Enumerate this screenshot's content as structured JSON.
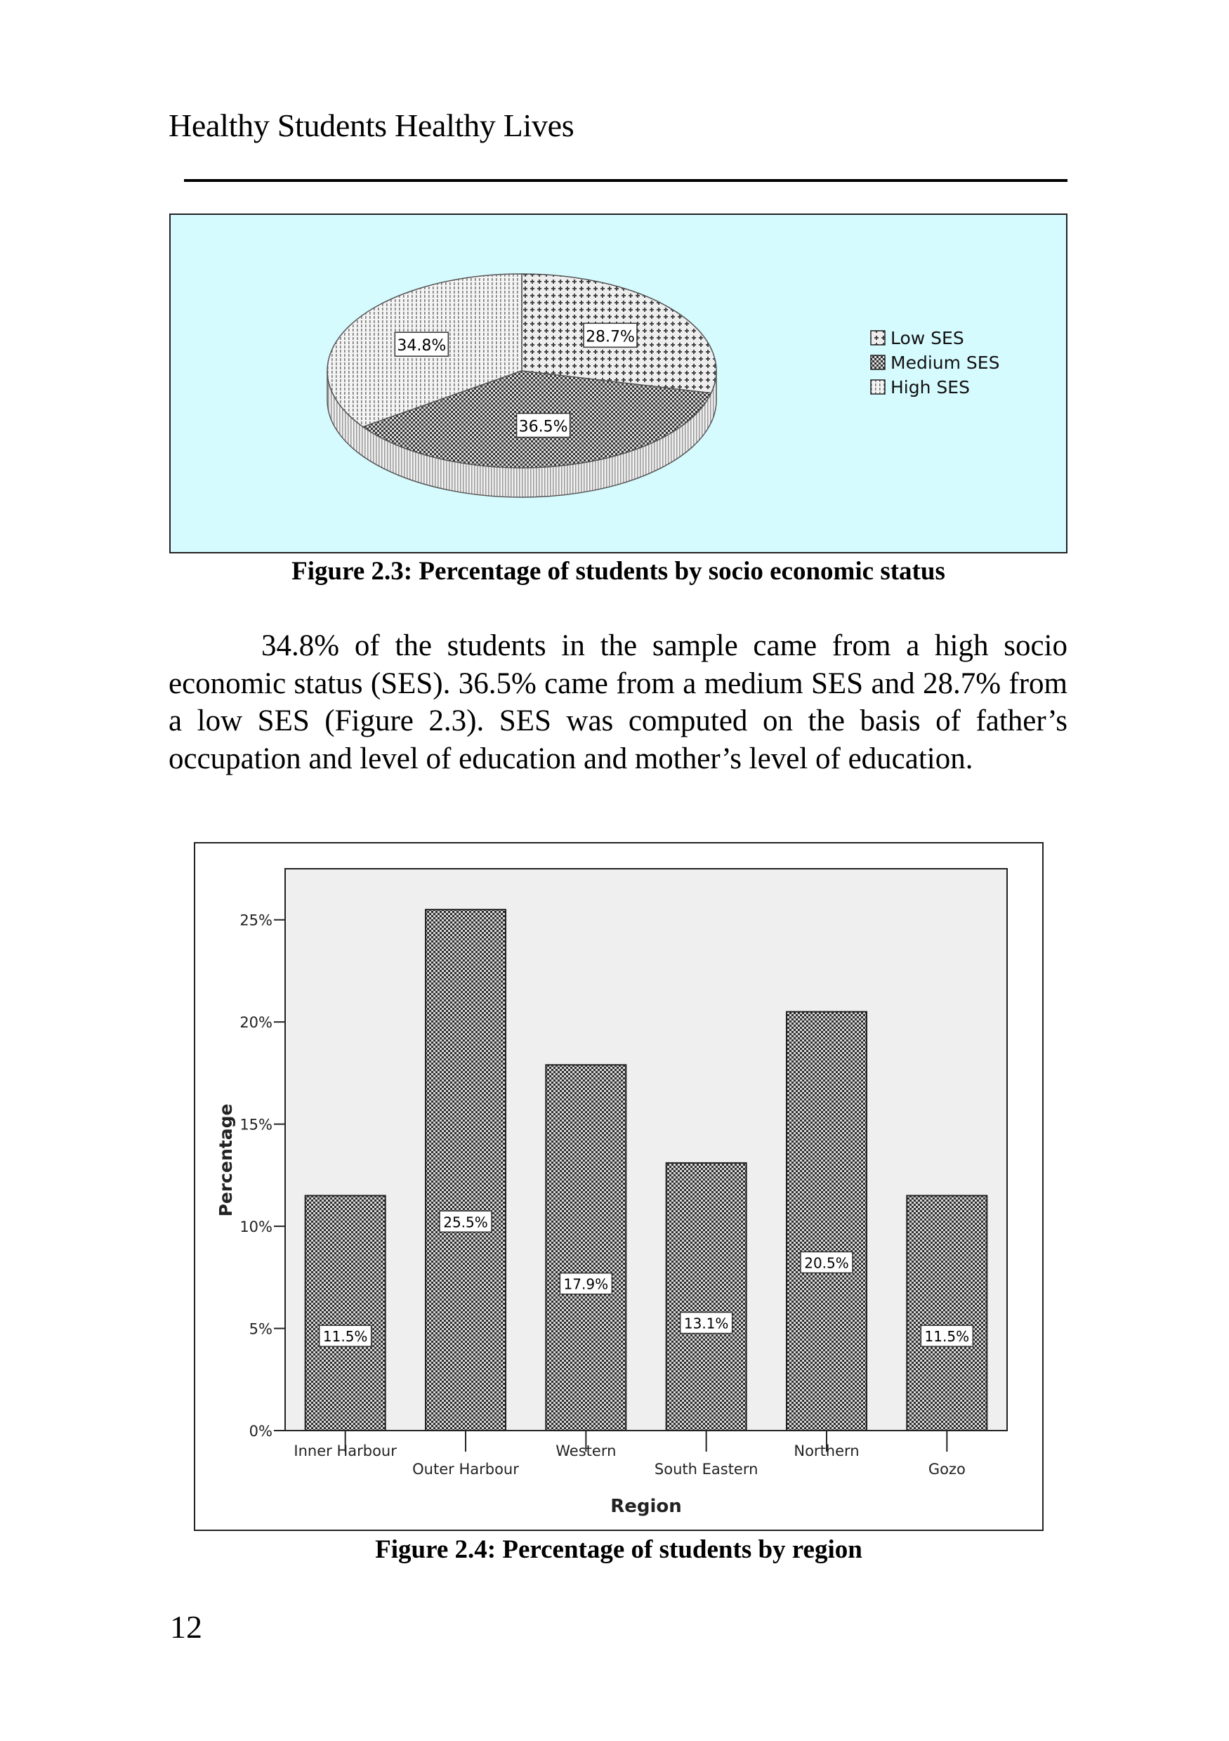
{
  "page": {
    "running_header": "Healthy Students Healthy Lives",
    "page_number": "12"
  },
  "figure_1": {
    "caption": "Figure 2.3: Percentage of students by socio economic status"
  },
  "paragraph": "34.8% of the students in the sample came from a high socio economic status (SES).  36.5% came from a medium SES and 28.7% from a low SES (Figure 2.3).  SES was computed on the basis of father’s occupation and level of education and mother’s level of education.",
  "figure_2": {
    "caption": "Figure 2.4: Percentage of students by region"
  },
  "colors": {
    "pie_background": "#d6fbff",
    "plot_background": "#efefef",
    "pattern_dark": "#333333"
  },
  "chart_data": [
    {
      "type": "pie",
      "title": "",
      "legend_position": "right",
      "categories": [
        "Low SES",
        "Medium SES",
        "High SES"
      ],
      "values": [
        28.7,
        36.5,
        34.8
      ],
      "data_labels": [
        "28.7%",
        "36.5%",
        "34.8%"
      ],
      "legend": [
        "Low SES",
        "Medium SES",
        "High SES"
      ]
    },
    {
      "type": "bar",
      "title": "",
      "xlabel": "Region",
      "ylabel": "Percentage",
      "categories": [
        "Inner Harbour",
        "Outer Harbour",
        "Western",
        "South Eastern",
        "Northern",
        "Gozo"
      ],
      "values": [
        11.5,
        25.5,
        17.9,
        13.1,
        20.5,
        11.5
      ],
      "data_labels": [
        "11.5%",
        "25.5%",
        "17.9%",
        "13.1%",
        "20.5%",
        "11.5%"
      ],
      "ylim": [
        0,
        27.5
      ],
      "yticks": [
        0,
        5,
        10,
        15,
        20,
        25
      ],
      "ytick_labels": [
        "0%",
        "5%",
        "10%",
        "15%",
        "20%",
        "25%"
      ],
      "grid": false
    }
  ]
}
